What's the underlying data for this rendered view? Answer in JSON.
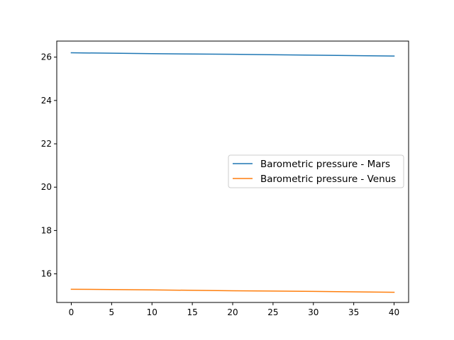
{
  "chart_data": {
    "type": "line",
    "title": "",
    "xlabel": "",
    "ylabel": "",
    "xlim": [
      -1.8,
      41.8
    ],
    "ylim": [
      14.68,
      26.74
    ],
    "xticks": [
      0,
      5,
      10,
      15,
      20,
      25,
      30,
      35,
      40
    ],
    "yticks": [
      16,
      18,
      20,
      22,
      24,
      26
    ],
    "grid": false,
    "legend_position": "center-right",
    "series": [
      {
        "name": "Barometric pressure - Mars",
        "color": "#1f77b4",
        "x": [
          0,
          10,
          20,
          30,
          40
        ],
        "y": [
          26.2,
          26.16,
          26.13,
          26.09,
          26.05
        ]
      },
      {
        "name": "Barometric pressure - Venus",
        "color": "#ff7f0e",
        "x": [
          0,
          10,
          20,
          30,
          40
        ],
        "y": [
          15.29,
          15.26,
          15.22,
          15.19,
          15.15
        ]
      }
    ]
  }
}
